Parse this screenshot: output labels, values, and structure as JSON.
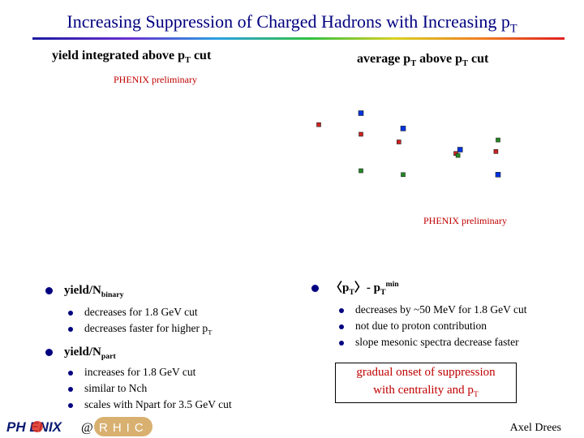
{
  "title": {
    "main": "Increasing Suppression of Charged Hadrons with Increasing p",
    "sub": "T"
  },
  "left_header": {
    "text": "yield integrated above p",
    "sub": "T",
    "tail": " cut"
  },
  "right_header": {
    "text": "average p",
    "sub": "T",
    "tail": " above p",
    "sub2": "T",
    "tail2": " cut"
  },
  "prelim_left": "PHENIX preliminary",
  "prelim_right": "PHENIX preliminary",
  "chart_data": {
    "type": "scatter",
    "series": [
      {
        "color": "#0033dd",
        "points": [
          [
            1.5,
            3.2
          ],
          [
            3.5,
            2.4
          ],
          [
            6.2,
            1.3
          ],
          [
            8.0,
            0.0
          ]
        ]
      },
      {
        "color": "#cc2222",
        "points": [
          [
            -0.5,
            2.6
          ],
          [
            1.5,
            2.1
          ],
          [
            3.3,
            1.7
          ],
          [
            6.0,
            1.1
          ],
          [
            7.9,
            1.2
          ]
        ]
      },
      {
        "color": "#228822",
        "points": [
          [
            1.5,
            0.2
          ],
          [
            3.5,
            0.0
          ],
          [
            6.1,
            1.0
          ],
          [
            8.0,
            1.8
          ]
        ]
      }
    ]
  },
  "left_list": {
    "bullet1": {
      "text": "yield/N",
      "sub": "binary"
    },
    "bullet1_items": [
      "decreases for 1.8 GeV cut",
      "decreases faster for higher p"
    ],
    "bullet1_item2_sub": "T",
    "bullet2": {
      "text": "yield/N",
      "sub": "part"
    },
    "bullet2_items": [
      "increases for 1.8 GeV cut",
      "similar to Nch",
      "scales with Npart for 3.5 GeV cut"
    ]
  },
  "right_list": {
    "bullet1": {
      "open": "〈p",
      "sub": "T",
      "close": "〉- p",
      "sub2": "T",
      "sup": "min"
    },
    "items": [
      "decreases by ~50 MeV for 1.8 GeV cut",
      "not due to proton contribution",
      "slope mesonic spectra decrease faster"
    ]
  },
  "box": {
    "line1": "gradual onset of suppression",
    "line2": "with centrality and p",
    "line2_sub": "T"
  },
  "logo": {
    "phenix": "PH ENIX",
    "at": "@",
    "rhic": "RHIC"
  },
  "author": "Axel Drees"
}
